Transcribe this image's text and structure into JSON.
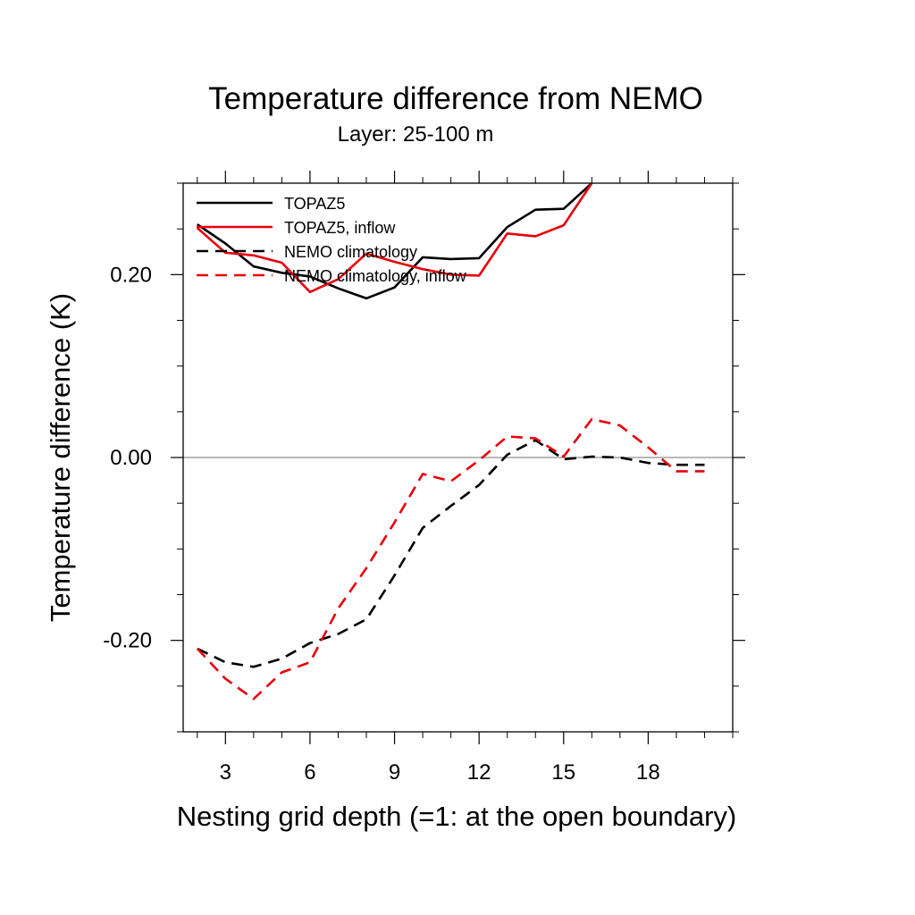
{
  "colors": {
    "topaz": "#000000",
    "inflow": "#e8000b",
    "zero_line": "#a0a0a0",
    "background": "#ffffff"
  },
  "chart_data": {
    "type": "line",
    "title": "Temperature difference from NEMO",
    "subtitle": "Layer: 25-100 m",
    "xlabel": "Nesting grid depth (=1: at the open boundary)",
    "ylabel": "Temperature difference (K)",
    "xlim": [
      1.5,
      21
    ],
    "ylim": [
      -0.3,
      0.3
    ],
    "x_ticks": [
      3,
      6,
      9,
      12,
      15,
      18
    ],
    "x_tick_labels": [
      "3",
      "6",
      "9",
      "12",
      "15",
      "18"
    ],
    "y_ticks": [
      -0.2,
      0.0,
      0.2
    ],
    "y_tick_labels": [
      "-0.20",
      "0.00",
      "0.20"
    ],
    "zero_line": true,
    "grid": false,
    "legend_position": "top-left",
    "series": [
      {
        "name": "TOPAZ5",
        "style": "solid",
        "color": "#000000",
        "x": [
          2,
          3,
          4,
          5,
          6,
          7,
          8,
          9,
          10,
          11,
          12,
          13,
          14,
          15,
          16
        ],
        "y": [
          0.255,
          0.234,
          0.209,
          0.202,
          0.198,
          0.185,
          0.174,
          0.186,
          0.219,
          0.217,
          0.218,
          0.252,
          0.271,
          0.272,
          0.3
        ]
      },
      {
        "name": "TOPAZ5, inflow",
        "style": "solid",
        "color": "#e8000b",
        "x": [
          2,
          3,
          4,
          5,
          6,
          7,
          8,
          9,
          10,
          11,
          12,
          13,
          14,
          15,
          16
        ],
        "y": [
          0.251,
          0.224,
          0.221,
          0.213,
          0.181,
          0.195,
          0.223,
          0.214,
          0.206,
          0.2,
          0.199,
          0.245,
          0.242,
          0.254,
          0.3
        ]
      },
      {
        "name": "NEMO climatology",
        "style": "dashed",
        "color": "#000000",
        "x": [
          2,
          3,
          4,
          5,
          6,
          7,
          8,
          9,
          10,
          11,
          12,
          13,
          14,
          15,
          16,
          17,
          18,
          19,
          20
        ],
        "y": [
          -0.209,
          -0.224,
          -0.229,
          -0.22,
          -0.203,
          -0.193,
          -0.177,
          -0.129,
          -0.077,
          -0.053,
          -0.03,
          0.003,
          0.019,
          -0.002,
          0.001,
          0.0,
          -0.006,
          -0.008,
          -0.008
        ]
      },
      {
        "name": "NEMO climatology, inflow",
        "style": "dashed",
        "color": "#e8000b",
        "x": [
          2,
          3,
          4,
          5,
          6,
          7,
          8,
          9,
          10,
          11,
          12,
          13,
          14,
          15,
          16,
          17,
          18,
          19,
          20
        ],
        "y": [
          -0.209,
          -0.242,
          -0.264,
          -0.235,
          -0.224,
          -0.165,
          -0.121,
          -0.071,
          -0.018,
          -0.026,
          -0.003,
          0.023,
          0.021,
          0.001,
          0.042,
          0.035,
          0.011,
          -0.015,
          -0.015
        ]
      }
    ]
  }
}
